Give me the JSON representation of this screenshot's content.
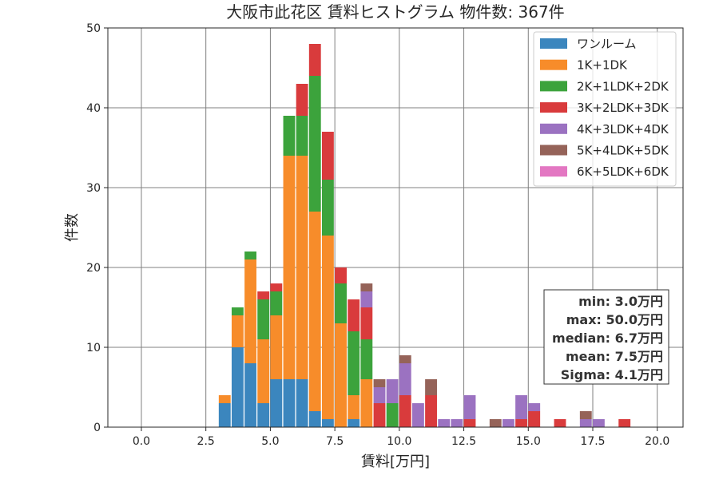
{
  "chart_data": {
    "type": "bar",
    "title": "大阪市此花区 賃料ヒストグラム 物件数: 367件",
    "xlabel": "賃料[万円]",
    "ylabel": "件数",
    "xlim": [
      -1.3,
      21.0
    ],
    "ylim": [
      0,
      50
    ],
    "xticks": [
      "0.0",
      "2.5",
      "5.0",
      "7.5",
      "10.0",
      "12.5",
      "15.0",
      "17.5",
      "20.0"
    ],
    "yticks": [
      "0",
      "10",
      "20",
      "30",
      "40",
      "50"
    ],
    "grid": true,
    "stacked": true,
    "bin_width": 0.5,
    "x": [
      3.0,
      3.5,
      4.0,
      4.5,
      5.0,
      5.5,
      6.0,
      6.5,
      7.0,
      7.5,
      8.0,
      8.5,
      9.0,
      9.5,
      10.0,
      10.5,
      11.0,
      11.5,
      12.0,
      12.5,
      13.0,
      13.5,
      14.0,
      14.5,
      15.0,
      15.5,
      16.0,
      16.5,
      17.0,
      17.5,
      18.0,
      18.5
    ],
    "legend_position": "top-right",
    "series": [
      {
        "name": "ワンルーム",
        "color": "#3b86be",
        "values": [
          3,
          10,
          8,
          3,
          6,
          6,
          6,
          2,
          1,
          0,
          1,
          0,
          0,
          0,
          0,
          0,
          0,
          0,
          0,
          0,
          0,
          0,
          0,
          0,
          0,
          0,
          0,
          0,
          0,
          0,
          0,
          0
        ]
      },
      {
        "name": "1K+1DK",
        "color": "#f78c2a",
        "values": [
          1,
          4,
          13,
          8,
          8,
          28,
          28,
          25,
          23,
          13,
          3,
          6,
          0,
          0,
          0,
          0,
          0,
          0,
          0,
          0,
          0,
          0,
          0,
          0,
          0,
          0,
          0,
          0,
          0,
          0,
          0,
          0
        ]
      },
      {
        "name": "2K+1LDK+2DK",
        "color": "#3ca33c",
        "values": [
          0,
          1,
          1,
          5,
          3,
          5,
          5,
          17,
          7,
          5,
          8,
          5,
          0,
          3,
          0,
          0,
          0,
          0,
          0,
          0,
          0,
          0,
          0,
          0,
          0,
          0,
          0,
          0,
          0,
          0,
          0,
          0
        ]
      },
      {
        "name": "3K+2LDK+3DK",
        "color": "#d93b3c",
        "values": [
          0,
          0,
          0,
          1,
          1,
          0,
          4,
          4,
          6,
          2,
          4,
          4,
          3,
          0,
          4,
          0,
          4,
          0,
          0,
          1,
          0,
          0,
          0,
          1,
          2,
          0,
          1,
          0,
          0,
          0,
          0,
          1
        ]
      },
      {
        "name": "4K+3LDK+4DK",
        "color": "#9b72c1",
        "values": [
          0,
          0,
          0,
          0,
          0,
          0,
          0,
          0,
          0,
          0,
          0,
          2,
          2,
          3,
          4,
          3,
          0,
          1,
          1,
          3,
          0,
          0,
          1,
          3,
          1,
          0,
          0,
          0,
          1,
          1,
          0,
          0
        ]
      },
      {
        "name": "5K+4LDK+5DK",
        "color": "#956359",
        "values": [
          0,
          0,
          0,
          0,
          0,
          0,
          0,
          0,
          0,
          0,
          0,
          1,
          1,
          0,
          1,
          0,
          2,
          0,
          0,
          0,
          0,
          1,
          0,
          0,
          0,
          0,
          0,
          0,
          1,
          0,
          0,
          0
        ]
      },
      {
        "name": "6K+5LDK+6DK",
        "color": "#e377c2",
        "values": [
          0,
          0,
          0,
          0,
          0,
          0,
          0,
          0,
          0,
          0,
          0,
          0,
          0,
          0,
          0,
          0,
          0,
          0,
          0,
          0,
          0,
          0,
          0,
          0,
          0,
          0,
          0,
          0,
          0,
          0,
          0,
          0
        ]
      }
    ],
    "stats": [
      "min: 3.0万円",
      "max: 50.0万円",
      "median: 6.7万円",
      "mean: 7.5万円",
      "Sigma: 4.1万円"
    ]
  }
}
